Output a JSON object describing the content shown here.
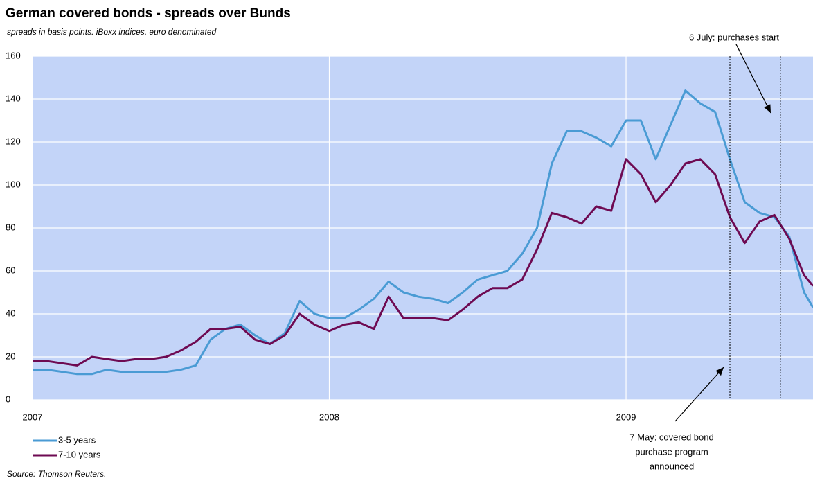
{
  "chart_data": {
    "type": "line",
    "title": "German covered bonds - spreads over Bunds",
    "subtitle": "spreads in basis points. iBoxx indices, euro denominated",
    "source": "Source: Thomson Reuters.",
    "x": [
      2007.0,
      2007.05,
      2007.1,
      2007.15,
      2007.2,
      2007.25,
      2007.3,
      2007.35,
      2007.4,
      2007.45,
      2007.5,
      2007.55,
      2007.6,
      2007.65,
      2007.7,
      2007.75,
      2007.8,
      2007.85,
      2007.9,
      2007.95,
      2008.0,
      2008.05,
      2008.1,
      2008.15,
      2008.2,
      2008.25,
      2008.3,
      2008.35,
      2008.4,
      2008.45,
      2008.5,
      2008.55,
      2008.6,
      2008.65,
      2008.7,
      2008.75,
      2008.8,
      2008.85,
      2008.9,
      2008.95,
      2009.0,
      2009.05,
      2009.1,
      2009.15,
      2009.2,
      2009.25,
      2009.3,
      2009.35,
      2009.4,
      2009.45,
      2009.5,
      2009.55,
      2009.6,
      2009.63
    ],
    "series": [
      {
        "name": "3-5 years",
        "color": "#4a9bd4",
        "values": [
          14,
          14,
          13,
          12,
          12,
          14,
          13,
          13,
          13,
          13,
          14,
          16,
          28,
          33,
          35,
          30,
          26,
          31,
          46,
          40,
          38,
          38,
          42,
          47,
          55,
          50,
          48,
          47,
          45,
          50,
          56,
          58,
          60,
          68,
          80,
          110,
          125,
          125,
          122,
          118,
          130,
          130,
          112,
          128,
          144,
          138,
          134,
          112,
          92,
          87,
          85,
          76,
          50,
          43
        ]
      },
      {
        "name": "7-10 years",
        "color": "#6e0a52",
        "values": [
          18,
          18,
          17,
          16,
          20,
          19,
          18,
          19,
          19,
          20,
          23,
          27,
          33,
          33,
          34,
          28,
          26,
          30,
          40,
          35,
          32,
          35,
          36,
          33,
          48,
          38,
          38,
          38,
          37,
          42,
          48,
          52,
          52,
          56,
          70,
          87,
          85,
          82,
          90,
          88,
          112,
          105,
          92,
          100,
          110,
          112,
          105,
          85,
          73,
          83,
          86,
          75,
          58,
          53
        ]
      }
    ],
    "xlim": [
      2007,
      2009.63
    ],
    "xticks": [
      2007,
      2008,
      2009
    ],
    "ylim": [
      0,
      160
    ],
    "yticks": [
      0,
      20,
      40,
      60,
      80,
      100,
      120,
      140,
      160
    ],
    "grid": true,
    "annotations": [
      {
        "text": [
          "7 May: covered bond",
          "purchase program",
          "announced"
        ],
        "x": 2009.35
      },
      {
        "text": [
          "6 July: purchases start"
        ],
        "x": 2009.52
      }
    ]
  }
}
